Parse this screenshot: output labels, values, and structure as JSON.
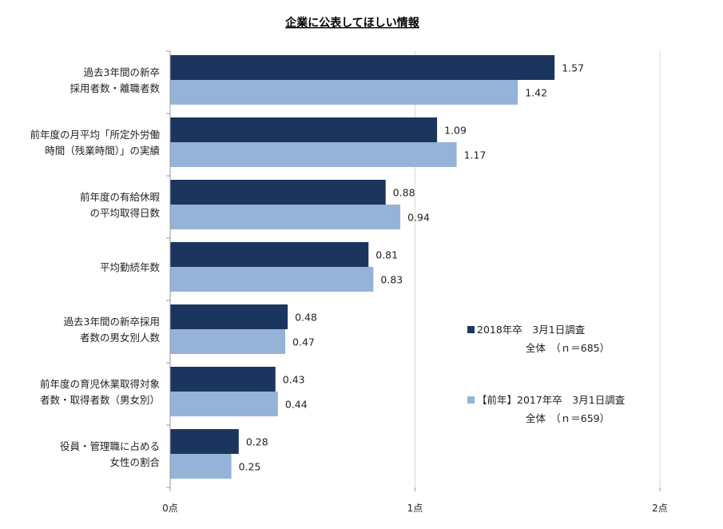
{
  "chart_data": {
    "type": "bar",
    "orientation": "horizontal",
    "title": "企業に公表してほしい情報",
    "categories": [
      [
        "過去3年間の新卒",
        "採用者数・離職者数"
      ],
      [
        "前年度の月平均「所定外労働",
        "時間（残業時間）」の実績"
      ],
      [
        "前年度の有給休暇",
        "の平均取得日数"
      ],
      [
        "平均勤続年数"
      ],
      [
        "過去3年間の新卒採用",
        "者数の男女別人数"
      ],
      [
        "前年度の育児休業取得対象",
        "者数・取得者数（男女別）"
      ],
      [
        "役員・管理職に占める",
        "女性の割合"
      ]
    ],
    "series": [
      {
        "name": "2018年卒　3月1日調査",
        "name_line2": "全体　（ｎ＝685）",
        "color": "#1c355e",
        "values": [
          1.57,
          1.09,
          0.88,
          0.81,
          0.48,
          0.43,
          0.28
        ],
        "labels": [
          "1.57",
          "1.09",
          "0.88",
          "0.81",
          "0.48",
          "0.43",
          "0.28"
        ]
      },
      {
        "name": "【前年】2017年卒　3月1日調査",
        "name_line2": "全体　（ｎ＝659）",
        "color": "#95b3d7",
        "values": [
          1.42,
          1.17,
          0.94,
          0.83,
          0.47,
          0.44,
          0.25
        ],
        "labels": [
          "1.42",
          "1.17",
          "0.94",
          "0.83",
          "0.47",
          "0.44",
          "0.25"
        ]
      }
    ],
    "xlim": [
      0,
      2
    ],
    "xticks": [
      0,
      1,
      2
    ],
    "xtick_labels": [
      "0点",
      "1点",
      "2点"
    ],
    "xlabel": "",
    "ylabel": "",
    "grid": true,
    "legend_position": "right"
  }
}
